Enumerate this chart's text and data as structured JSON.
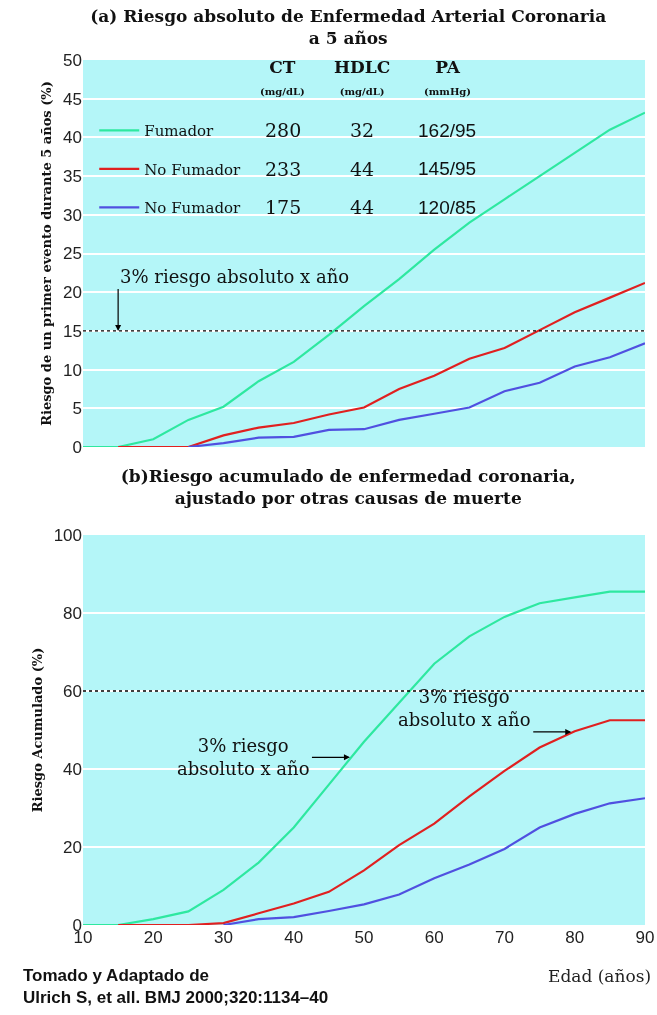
{
  "chart_data": [
    {
      "type": "line",
      "title": "(a) Riesgo absoluto de Enfermedad Arterial Coronaria\na 5 años",
      "ylabel": "Riesgo de un primer evento durante 5 años (%)",
      "x": [
        10,
        15,
        20,
        25,
        30,
        35,
        40,
        45,
        50,
        55,
        60,
        65,
        70,
        75,
        80,
        85,
        90
      ],
      "series": [
        {
          "name": "Fumador",
          "color": "#2ee8a0",
          "values": [
            0,
            0,
            1,
            3.5,
            5.2,
            8.5,
            11,
            14.5,
            18.2,
            21.7,
            25.5,
            29,
            32,
            35,
            38,
            41,
            43.2
          ]
        },
        {
          "name": "No Fumador",
          "color": "#e02020",
          "values": [
            null,
            0,
            0,
            0,
            1.5,
            2.5,
            3.1,
            4.2,
            5.1,
            7.5,
            9.2,
            11.4,
            12.8,
            15.1,
            17.4,
            19.3,
            21.2
          ]
        },
        {
          "name": "No Fumador",
          "color": "#5050e0",
          "values": [
            null,
            null,
            null,
            0,
            0.5,
            1.2,
            1.3,
            2.2,
            2.3,
            3.5,
            4.3,
            5.1,
            7.2,
            8.3,
            10.4,
            11.6,
            13.4
          ]
        }
      ],
      "xlim": [
        10,
        90
      ],
      "xticks": [
        10,
        20,
        30,
        40,
        50,
        60,
        70,
        80,
        90
      ],
      "ylim": [
        0,
        50
      ],
      "yticks": [
        0,
        5,
        10,
        15,
        20,
        25,
        30,
        35,
        40,
        45,
        50
      ],
      "tick_labels": "y",
      "grid": "y",
      "legend": "top left",
      "marker": "none",
      "line_style": "solid",
      "ref_lines": [
        {
          "axis": "y",
          "value": 15,
          "color": "#000000",
          "line_style": "dotted"
        }
      ],
      "annotations": [
        {
          "text": "3% riesgo absoluto x año",
          "x": 15,
          "y": 15
        },
        "CT\n(mg/dL)",
        "HDLC\n(mg/dL)",
        "PA\n(mmHg)",
        "280",
        "32",
        "162/95",
        "233",
        "44",
        "145/95",
        "175",
        "44",
        "120/85"
      ]
    },
    {
      "type": "line",
      "title": "(b)Riesgo acumulado de enfermedad coronaria,\najustado por otras causas de muerte",
      "xlabel": "Edad (años)",
      "ylabel": "Riesgo Acumulado (%)",
      "x": [
        10,
        15,
        20,
        25,
        30,
        35,
        40,
        45,
        50,
        55,
        60,
        65,
        70,
        75,
        80,
        85,
        90
      ],
      "series": [
        {
          "color": "#2ee8a0",
          "values": [
            0,
            0,
            1.5,
            3.5,
            9,
            16,
            25,
            36,
            47,
            57,
            67,
            74,
            79,
            82.5,
            84,
            85.5,
            85.5
          ]
        },
        {
          "color": "#e02020",
          "values": [
            null,
            0,
            0,
            0,
            0.5,
            3,
            5.5,
            8.5,
            14,
            20.5,
            26,
            33,
            39.5,
            45.5,
            49.7,
            52.5,
            52.5
          ]
        },
        {
          "color": "#5050e0",
          "values": [
            null,
            null,
            null,
            null,
            0,
            1.5,
            2,
            3.6,
            5.3,
            7.8,
            12,
            15.5,
            19.5,
            25,
            28.5,
            31.2,
            32.5
          ]
        }
      ],
      "xlim": [
        10,
        90
      ],
      "xticks": [
        10,
        20,
        30,
        40,
        50,
        60,
        70,
        80,
        90
      ],
      "ylim": [
        0,
        100
      ],
      "yticks": [
        0,
        20,
        40,
        60,
        80,
        100
      ],
      "grid": "y",
      "marker": "none",
      "line_style": "solid",
      "ref_lines": [
        {
          "axis": "y",
          "value": 60,
          "color": "#000000",
          "line_style": "dotted"
        }
      ],
      "annotations": [
        {
          "text": "3% riesgo\nabsoluto x año",
          "x": 48,
          "y": 43
        },
        {
          "text": "3% riesgo\nabsoluto x año",
          "x": 79.5,
          "y": 49.5
        },
        "Tomado y Adaptado de\nUlrich S, et all. BMJ 2000;320:1134–40"
      ]
    }
  ]
}
